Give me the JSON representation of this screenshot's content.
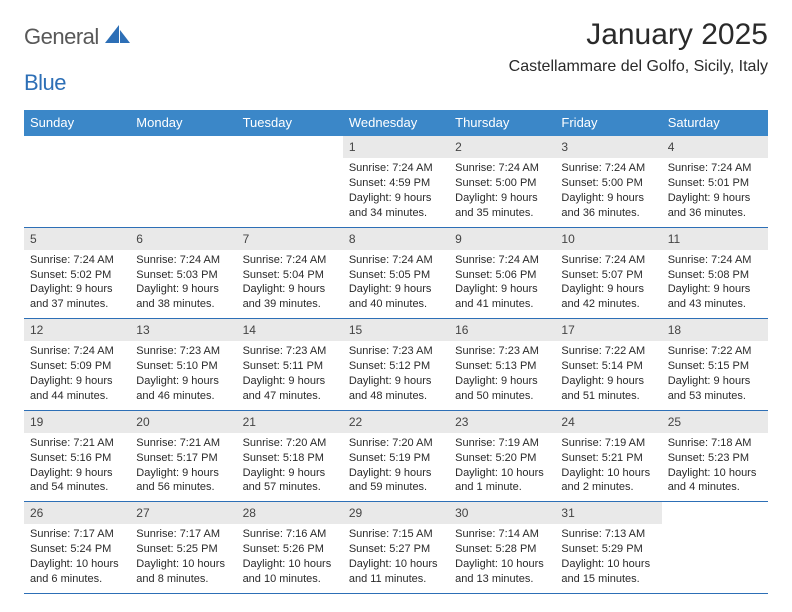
{
  "brand": {
    "word1": "General",
    "word2": "Blue"
  },
  "title": "January 2025",
  "subtitle": "Castellammare del Golfo, Sicily, Italy",
  "colors": {
    "header_bg": "#3b87c8",
    "header_text": "#ffffff",
    "daynum_bg": "#e9e9e9",
    "rule": "#2d6fb6",
    "brand_gray": "#585858",
    "brand_blue": "#2d6fb6"
  },
  "dows": [
    "Sunday",
    "Monday",
    "Tuesday",
    "Wednesday",
    "Thursday",
    "Friday",
    "Saturday"
  ],
  "weeks": [
    [
      {
        "n": "",
        "sr": "",
        "ss": "",
        "dl1": "",
        "dl2": ""
      },
      {
        "n": "",
        "sr": "",
        "ss": "",
        "dl1": "",
        "dl2": ""
      },
      {
        "n": "",
        "sr": "",
        "ss": "",
        "dl1": "",
        "dl2": ""
      },
      {
        "n": "1",
        "sr": "Sunrise: 7:24 AM",
        "ss": "Sunset: 4:59 PM",
        "dl1": "Daylight: 9 hours",
        "dl2": "and 34 minutes."
      },
      {
        "n": "2",
        "sr": "Sunrise: 7:24 AM",
        "ss": "Sunset: 5:00 PM",
        "dl1": "Daylight: 9 hours",
        "dl2": "and 35 minutes."
      },
      {
        "n": "3",
        "sr": "Sunrise: 7:24 AM",
        "ss": "Sunset: 5:00 PM",
        "dl1": "Daylight: 9 hours",
        "dl2": "and 36 minutes."
      },
      {
        "n": "4",
        "sr": "Sunrise: 7:24 AM",
        "ss": "Sunset: 5:01 PM",
        "dl1": "Daylight: 9 hours",
        "dl2": "and 36 minutes."
      }
    ],
    [
      {
        "n": "5",
        "sr": "Sunrise: 7:24 AM",
        "ss": "Sunset: 5:02 PM",
        "dl1": "Daylight: 9 hours",
        "dl2": "and 37 minutes."
      },
      {
        "n": "6",
        "sr": "Sunrise: 7:24 AM",
        "ss": "Sunset: 5:03 PM",
        "dl1": "Daylight: 9 hours",
        "dl2": "and 38 minutes."
      },
      {
        "n": "7",
        "sr": "Sunrise: 7:24 AM",
        "ss": "Sunset: 5:04 PM",
        "dl1": "Daylight: 9 hours",
        "dl2": "and 39 minutes."
      },
      {
        "n": "8",
        "sr": "Sunrise: 7:24 AM",
        "ss": "Sunset: 5:05 PM",
        "dl1": "Daylight: 9 hours",
        "dl2": "and 40 minutes."
      },
      {
        "n": "9",
        "sr": "Sunrise: 7:24 AM",
        "ss": "Sunset: 5:06 PM",
        "dl1": "Daylight: 9 hours",
        "dl2": "and 41 minutes."
      },
      {
        "n": "10",
        "sr": "Sunrise: 7:24 AM",
        "ss": "Sunset: 5:07 PM",
        "dl1": "Daylight: 9 hours",
        "dl2": "and 42 minutes."
      },
      {
        "n": "11",
        "sr": "Sunrise: 7:24 AM",
        "ss": "Sunset: 5:08 PM",
        "dl1": "Daylight: 9 hours",
        "dl2": "and 43 minutes."
      }
    ],
    [
      {
        "n": "12",
        "sr": "Sunrise: 7:24 AM",
        "ss": "Sunset: 5:09 PM",
        "dl1": "Daylight: 9 hours",
        "dl2": "and 44 minutes."
      },
      {
        "n": "13",
        "sr": "Sunrise: 7:23 AM",
        "ss": "Sunset: 5:10 PM",
        "dl1": "Daylight: 9 hours",
        "dl2": "and 46 minutes."
      },
      {
        "n": "14",
        "sr": "Sunrise: 7:23 AM",
        "ss": "Sunset: 5:11 PM",
        "dl1": "Daylight: 9 hours",
        "dl2": "and 47 minutes."
      },
      {
        "n": "15",
        "sr": "Sunrise: 7:23 AM",
        "ss": "Sunset: 5:12 PM",
        "dl1": "Daylight: 9 hours",
        "dl2": "and 48 minutes."
      },
      {
        "n": "16",
        "sr": "Sunrise: 7:23 AM",
        "ss": "Sunset: 5:13 PM",
        "dl1": "Daylight: 9 hours",
        "dl2": "and 50 minutes."
      },
      {
        "n": "17",
        "sr": "Sunrise: 7:22 AM",
        "ss": "Sunset: 5:14 PM",
        "dl1": "Daylight: 9 hours",
        "dl2": "and 51 minutes."
      },
      {
        "n": "18",
        "sr": "Sunrise: 7:22 AM",
        "ss": "Sunset: 5:15 PM",
        "dl1": "Daylight: 9 hours",
        "dl2": "and 53 minutes."
      }
    ],
    [
      {
        "n": "19",
        "sr": "Sunrise: 7:21 AM",
        "ss": "Sunset: 5:16 PM",
        "dl1": "Daylight: 9 hours",
        "dl2": "and 54 minutes."
      },
      {
        "n": "20",
        "sr": "Sunrise: 7:21 AM",
        "ss": "Sunset: 5:17 PM",
        "dl1": "Daylight: 9 hours",
        "dl2": "and 56 minutes."
      },
      {
        "n": "21",
        "sr": "Sunrise: 7:20 AM",
        "ss": "Sunset: 5:18 PM",
        "dl1": "Daylight: 9 hours",
        "dl2": "and 57 minutes."
      },
      {
        "n": "22",
        "sr": "Sunrise: 7:20 AM",
        "ss": "Sunset: 5:19 PM",
        "dl1": "Daylight: 9 hours",
        "dl2": "and 59 minutes."
      },
      {
        "n": "23",
        "sr": "Sunrise: 7:19 AM",
        "ss": "Sunset: 5:20 PM",
        "dl1": "Daylight: 10 hours",
        "dl2": "and 1 minute."
      },
      {
        "n": "24",
        "sr": "Sunrise: 7:19 AM",
        "ss": "Sunset: 5:21 PM",
        "dl1": "Daylight: 10 hours",
        "dl2": "and 2 minutes."
      },
      {
        "n": "25",
        "sr": "Sunrise: 7:18 AM",
        "ss": "Sunset: 5:23 PM",
        "dl1": "Daylight: 10 hours",
        "dl2": "and 4 minutes."
      }
    ],
    [
      {
        "n": "26",
        "sr": "Sunrise: 7:17 AM",
        "ss": "Sunset: 5:24 PM",
        "dl1": "Daylight: 10 hours",
        "dl2": "and 6 minutes."
      },
      {
        "n": "27",
        "sr": "Sunrise: 7:17 AM",
        "ss": "Sunset: 5:25 PM",
        "dl1": "Daylight: 10 hours",
        "dl2": "and 8 minutes."
      },
      {
        "n": "28",
        "sr": "Sunrise: 7:16 AM",
        "ss": "Sunset: 5:26 PM",
        "dl1": "Daylight: 10 hours",
        "dl2": "and 10 minutes."
      },
      {
        "n": "29",
        "sr": "Sunrise: 7:15 AM",
        "ss": "Sunset: 5:27 PM",
        "dl1": "Daylight: 10 hours",
        "dl2": "and 11 minutes."
      },
      {
        "n": "30",
        "sr": "Sunrise: 7:14 AM",
        "ss": "Sunset: 5:28 PM",
        "dl1": "Daylight: 10 hours",
        "dl2": "and 13 minutes."
      },
      {
        "n": "31",
        "sr": "Sunrise: 7:13 AM",
        "ss": "Sunset: 5:29 PM",
        "dl1": "Daylight: 10 hours",
        "dl2": "and 15 minutes."
      },
      {
        "n": "",
        "sr": "",
        "ss": "",
        "dl1": "",
        "dl2": ""
      }
    ]
  ]
}
